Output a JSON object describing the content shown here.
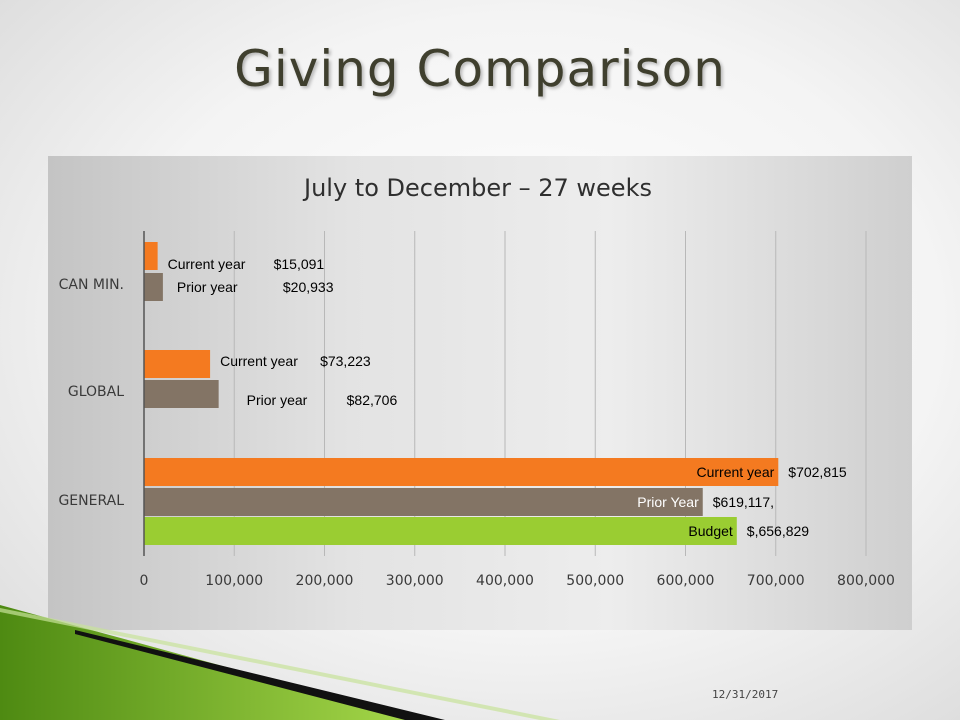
{
  "slide": {
    "title": "Giving Comparison",
    "date": "12/31/2017"
  },
  "chart_data": {
    "type": "bar",
    "orientation": "horizontal",
    "title": "July to December – 27 weeks",
    "xlim": [
      0,
      800000
    ],
    "xticks": [
      "0",
      "100,000",
      "200,000",
      "300,000",
      "400,000",
      "500,000",
      "600,000",
      "700,000",
      "800,000"
    ],
    "grid": true,
    "colors": {
      "current": "#f47a20",
      "prior": "#837465",
      "budget": "#9acd32"
    },
    "categories": [
      {
        "name": "CAN MIN.",
        "bars": [
          {
            "series": "current",
            "value": 15091,
            "label_name": "Current year",
            "label_value": "$15,091"
          },
          {
            "series": "prior",
            "value": 20933,
            "label_name": "Prior year",
            "label_value": "$20,933"
          }
        ]
      },
      {
        "name": "GLOBAL",
        "bars": [
          {
            "series": "current",
            "value": 73223,
            "label_name": "Current year",
            "label_value": "$73,223"
          },
          {
            "series": "prior",
            "value": 82706,
            "label_name": "Prior year",
            "label_value": "$82,706"
          }
        ]
      },
      {
        "name": "GENERAL",
        "bars": [
          {
            "series": "current",
            "value": 702815,
            "label_name": "Current year",
            "label_value": "$702,815"
          },
          {
            "series": "prior",
            "value": 619117,
            "label_name": "Prior Year",
            "label_value": "$619,117,"
          },
          {
            "series": "budget",
            "value": 656829,
            "label_name": "Budget",
            "label_value": "$,656,829"
          }
        ]
      }
    ]
  }
}
